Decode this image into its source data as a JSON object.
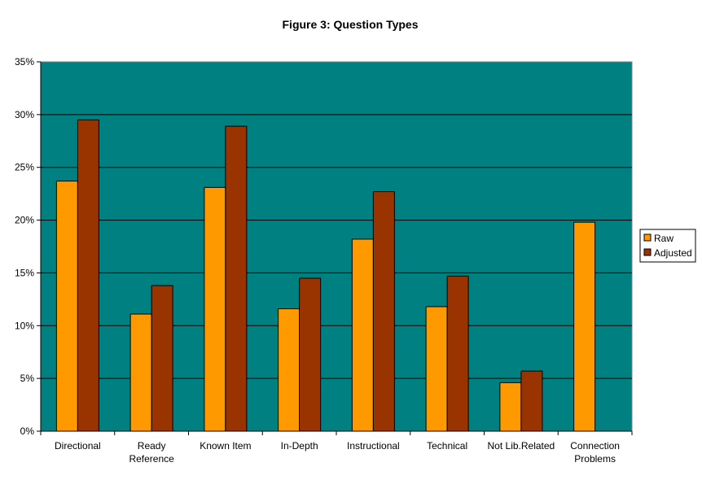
{
  "chart_data": {
    "type": "bar",
    "title": "Figure 3: Question Types",
    "xlabel": "",
    "ylabel": "",
    "ylim": [
      0,
      35
    ],
    "y_ticks": [
      0,
      5,
      10,
      15,
      20,
      25,
      30,
      35
    ],
    "y_tick_labels": [
      "0%",
      "5%",
      "10%",
      "15%",
      "20%",
      "25%",
      "30%",
      "35%"
    ],
    "categories": [
      "Directional",
      "Ready Reference",
      "Known Item",
      "In-Depth",
      "Instructional",
      "Technical",
      "Not Lib.Related",
      "Connection Problems"
    ],
    "category_lines": [
      [
        "Directional"
      ],
      [
        "Ready",
        "Reference"
      ],
      [
        "Known Item"
      ],
      [
        "In-Depth"
      ],
      [
        "Instructional"
      ],
      [
        "Technical"
      ],
      [
        "Not Lib.Related"
      ],
      [
        "Connection",
        "Problems"
      ]
    ],
    "series": [
      {
        "name": "Raw",
        "color": "#ff9900",
        "values": [
          23.7,
          11.1,
          23.1,
          11.6,
          18.2,
          11.8,
          4.6,
          19.8
        ]
      },
      {
        "name": "Adjusted",
        "color": "#993300",
        "values": [
          29.5,
          13.8,
          28.9,
          14.5,
          22.7,
          14.7,
          5.7,
          null
        ]
      }
    ],
    "plot_background": "#008080",
    "grid": true,
    "legend_position": "right"
  }
}
